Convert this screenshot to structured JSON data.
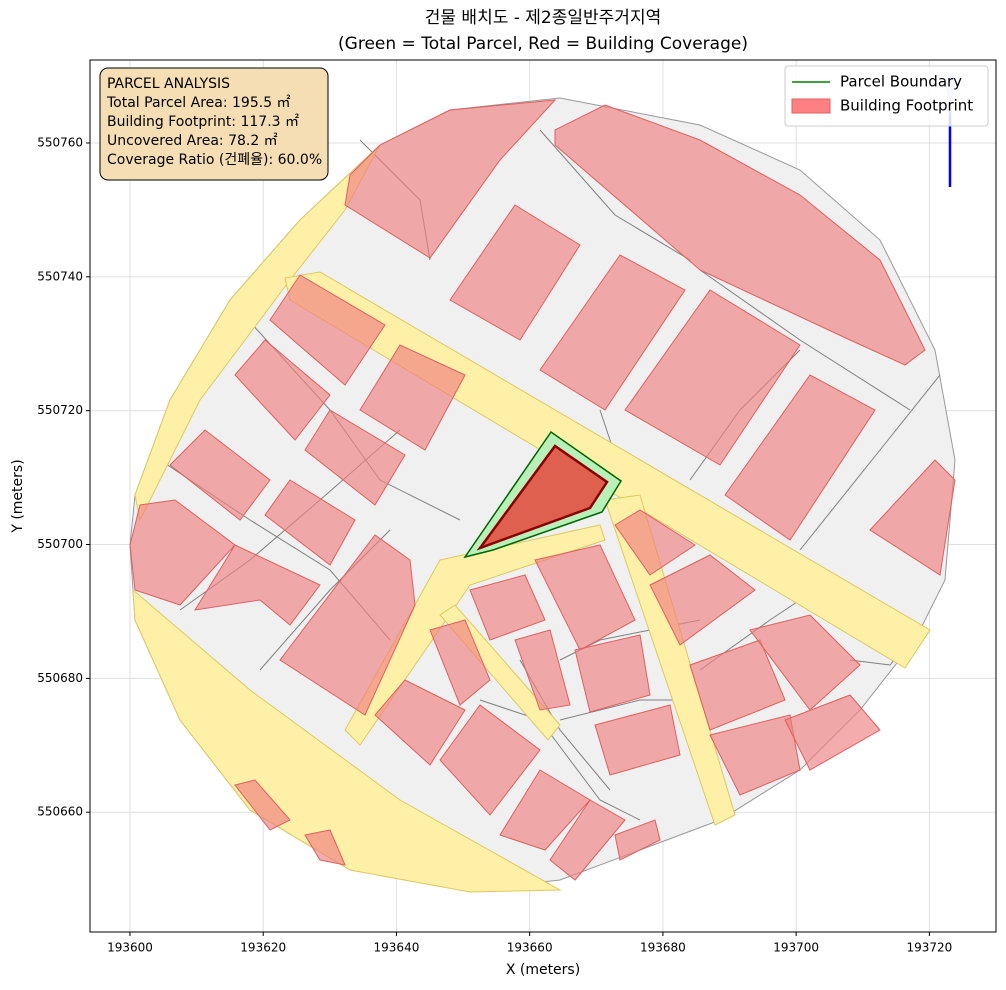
{
  "chart_data": {
    "type": "map",
    "title": "건물 배치도 - 제2종일반주거지역",
    "subtitle": "(Green = Total Parcel, Red = Building Coverage)",
    "xlabel": "X (meters)",
    "ylabel": "Y (meters)",
    "xlim": [
      193594,
      193730
    ],
    "ylim": [
      550642.1,
      550772.4
    ],
    "xticks": [
      193600,
      193620,
      193640,
      193660,
      193680,
      193700,
      193720
    ],
    "yticks": [
      550660,
      550680,
      550700,
      550720,
      550740,
      550760
    ],
    "grid": true,
    "legend": {
      "position": "upper right",
      "entries": [
        {
          "name": "Parcel Boundary",
          "color": "#008000",
          "kind": "line"
        },
        {
          "name": "Building Footprint",
          "color": "#ff8080",
          "kind": "patch"
        }
      ]
    },
    "annotation": [
      "PARCEL ANALYSIS",
      "Total Parcel Area: 195.5 ㎡",
      "Building Footprint: 117.3 ㎡",
      "Uncovered Area: 78.2 ㎡",
      "Coverage Ratio (건폐율): 60.0%"
    ]
  }
}
